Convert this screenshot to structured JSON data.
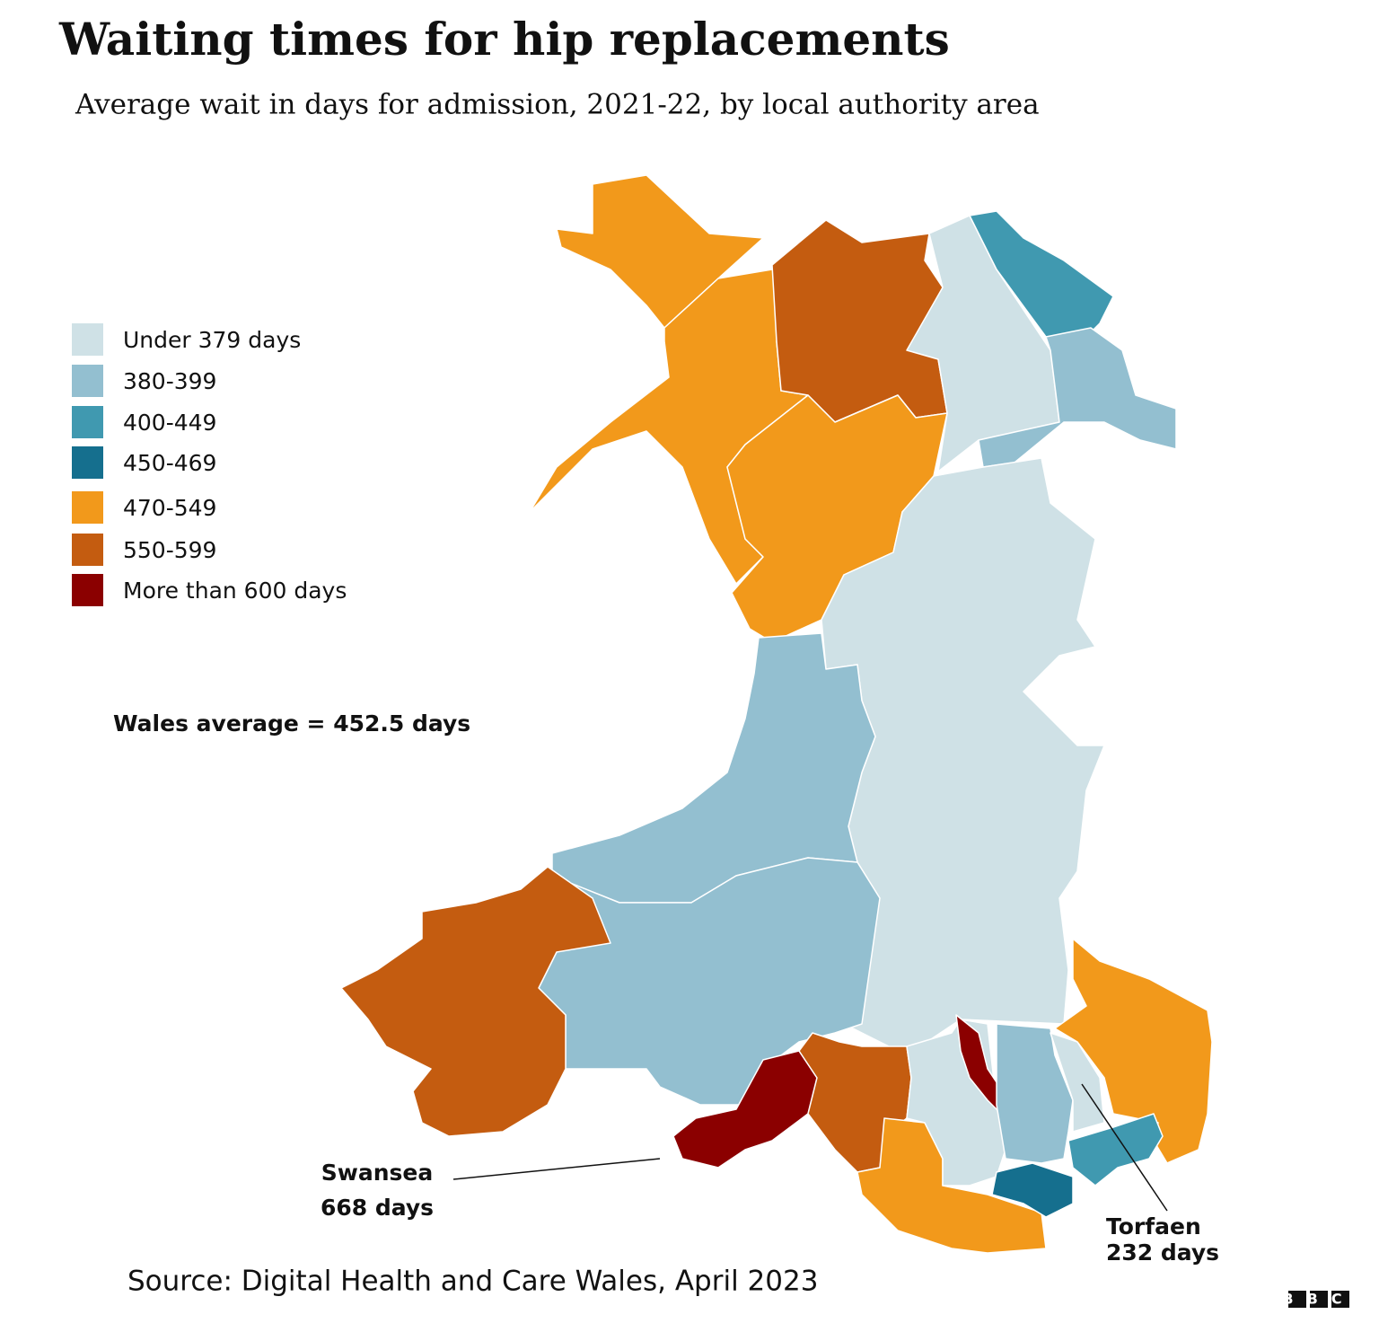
{
  "header": {
    "title": "Waiting times for hip replacements",
    "subtitle": "Average wait in days for admission, 2021-22, by local authority area"
  },
  "legend": [
    {
      "label": "Under 379 days",
      "color": "#cfe1e6"
    },
    {
      "label": "380-399",
      "color": "#93bfd0"
    },
    {
      "label": "400-449",
      "color": "#4099b0"
    },
    {
      "label": "450-469",
      "color": "#156f8e"
    },
    {
      "label": "470-549",
      "color": "#f2991b"
    },
    {
      "label": "550-599",
      "color": "#c45c10"
    },
    {
      "label": "More than 600 days",
      "color": "#8b0000"
    }
  ],
  "annotations": {
    "average": "Wales average = 452.5 days",
    "swansea": {
      "name": "Swansea",
      "value": "668 days"
    },
    "torfaen": {
      "name": "Torfaen",
      "value": "232 days"
    }
  },
  "footer": {
    "source": "Source: Digital Health and Care Wales, April 2023",
    "logo": "BBC"
  }
}
